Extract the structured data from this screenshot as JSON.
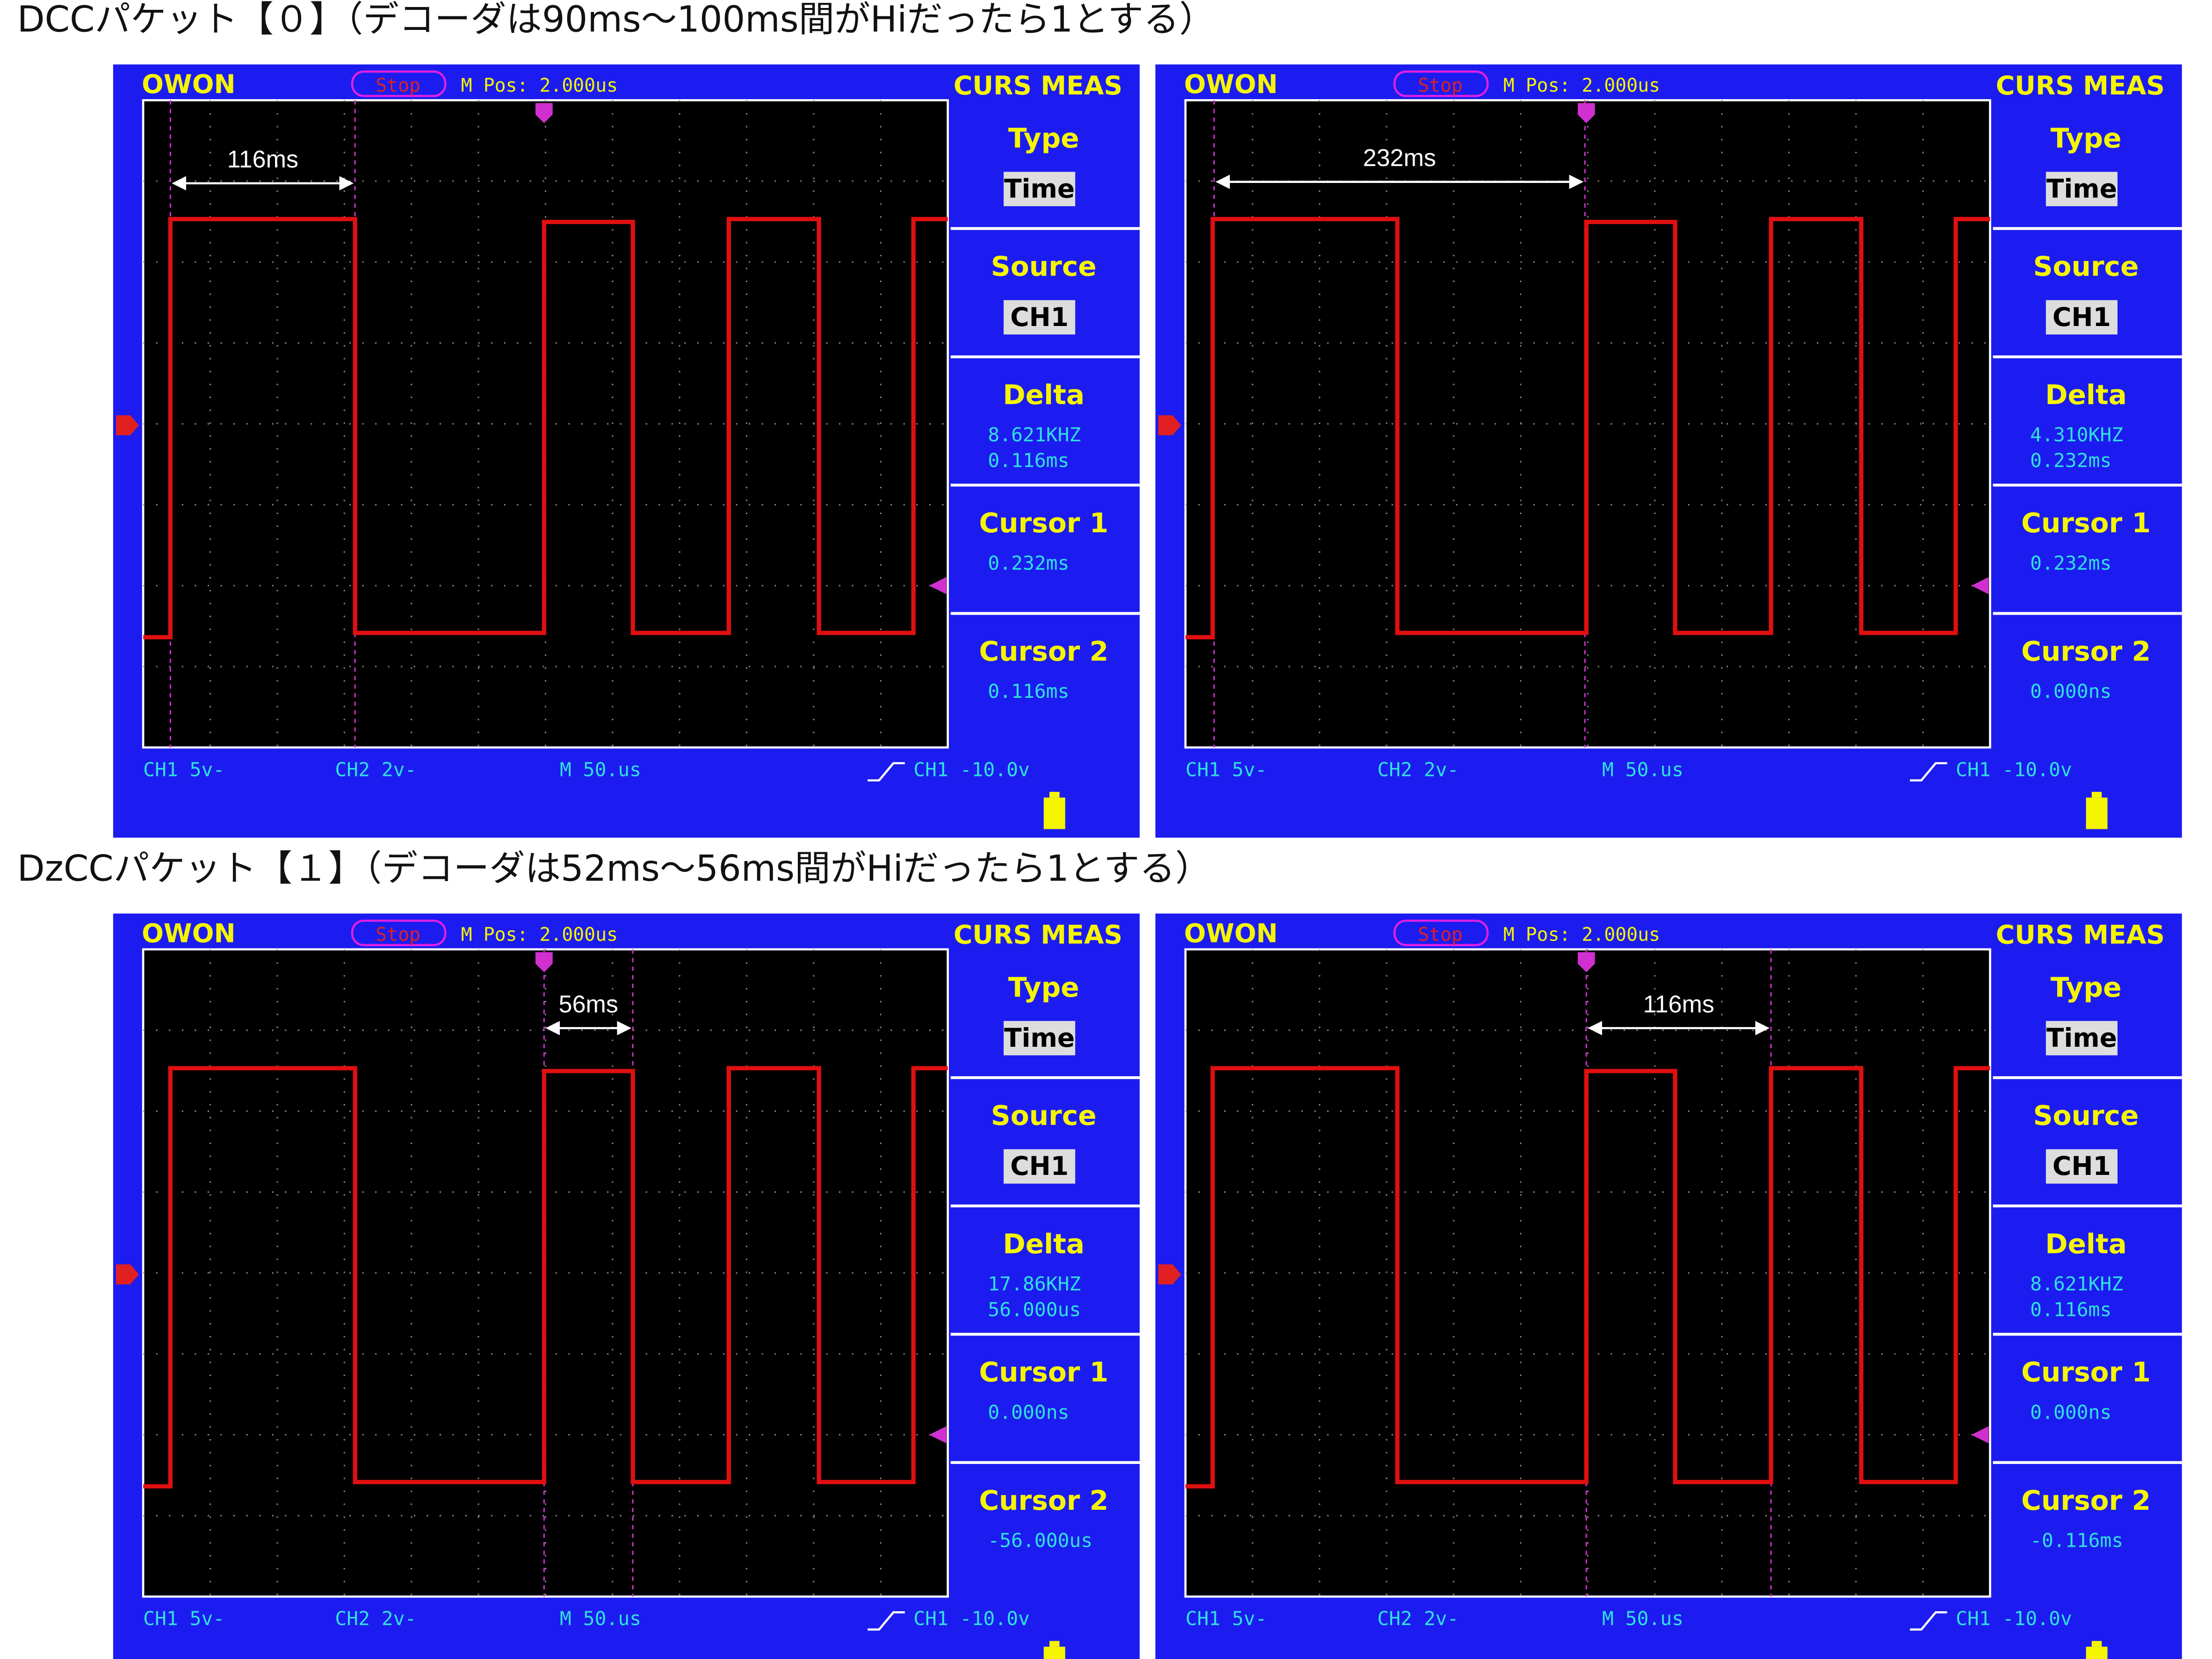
{
  "sections": [
    {
      "heading": "DCCパケット【０】（デコーダは90ms〜100ms間がHiだったら1とする）",
      "screens": [
        {
          "brand": "OWON",
          "status": "Stop",
          "position": "M Pos: 2.000us",
          "mode": "CURS MEAS",
          "annotation": "116ms",
          "menu": [
            {
              "title": "Type",
              "values": [
                "Time"
              ]
            },
            {
              "title": "Source",
              "values": [
                "CH1"
              ]
            },
            {
              "title": "Delta",
              "values": [
                "8.621KHZ",
                "0.116ms"
              ]
            },
            {
              "title": "Cursor 1",
              "values": [
                "0.232ms"
              ]
            },
            {
              "title": "Cursor 2",
              "values": [
                "0.116ms"
              ]
            }
          ],
          "footer": [
            "CH1 5v-",
            "CH2 2v-",
            "M 50.us",
            "CH1 -10.0v"
          ]
        },
        {
          "brand": "OWON",
          "status": "Stop",
          "position": "M Pos: 2.000us",
          "mode": "CURS MEAS",
          "annotation": "232ms",
          "menu": [
            {
              "title": "Type",
              "values": [
                "Time"
              ]
            },
            {
              "title": "Source",
              "values": [
                "CH1"
              ]
            },
            {
              "title": "Delta",
              "values": [
                "4.310KHZ",
                "0.232ms"
              ]
            },
            {
              "title": "Cursor 1",
              "values": [
                "0.232ms"
              ]
            },
            {
              "title": "Cursor 2",
              "values": [
                "0.000ns"
              ]
            }
          ],
          "footer": [
            "CH1 5v-",
            "CH2 2v-",
            "M 50.us",
            "CH1 -10.0v"
          ]
        }
      ]
    },
    {
      "heading": "DzCCパケット【１】（デコーダは52ms〜56ms間がHiだったら1とする）",
      "screens": [
        {
          "brand": "OWON",
          "status": "Stop",
          "position": "M Pos: 2.000us",
          "mode": "CURS MEAS",
          "annotation": "56ms",
          "menu": [
            {
              "title": "Type",
              "values": [
                "Time"
              ]
            },
            {
              "title": "Source",
              "values": [
                "CH1"
              ]
            },
            {
              "title": "Delta",
              "values": [
                "17.86KHZ",
                "56.000us"
              ]
            },
            {
              "title": "Cursor 1",
              "values": [
                "0.000ns"
              ]
            },
            {
              "title": "Cursor 2",
              "values": [
                "-56.000us"
              ]
            }
          ],
          "footer": [
            "CH1 5v-",
            "CH2 2v-",
            "M 50.us",
            "CH1 -10.0v"
          ]
        },
        {
          "brand": "OWON",
          "status": "Stop",
          "position": "M Pos: 2.000us",
          "mode": "CURS MEAS",
          "annotation": "116ms",
          "menu": [
            {
              "title": "Type",
              "values": [
                "Time"
              ]
            },
            {
              "title": "Source",
              "values": [
                "CH1"
              ]
            },
            {
              "title": "Delta",
              "values": [
                "8.621KHZ",
                "0.116ms"
              ]
            },
            {
              "title": "Cursor 1",
              "values": [
                "0.000ns"
              ]
            },
            {
              "title": "Cursor 2",
              "values": [
                "-0.116ms"
              ]
            }
          ],
          "footer": [
            "CH1 5v-",
            "CH2 2v-",
            "M 50.us",
            "CH1 -10.0v"
          ]
        }
      ]
    }
  ]
}
